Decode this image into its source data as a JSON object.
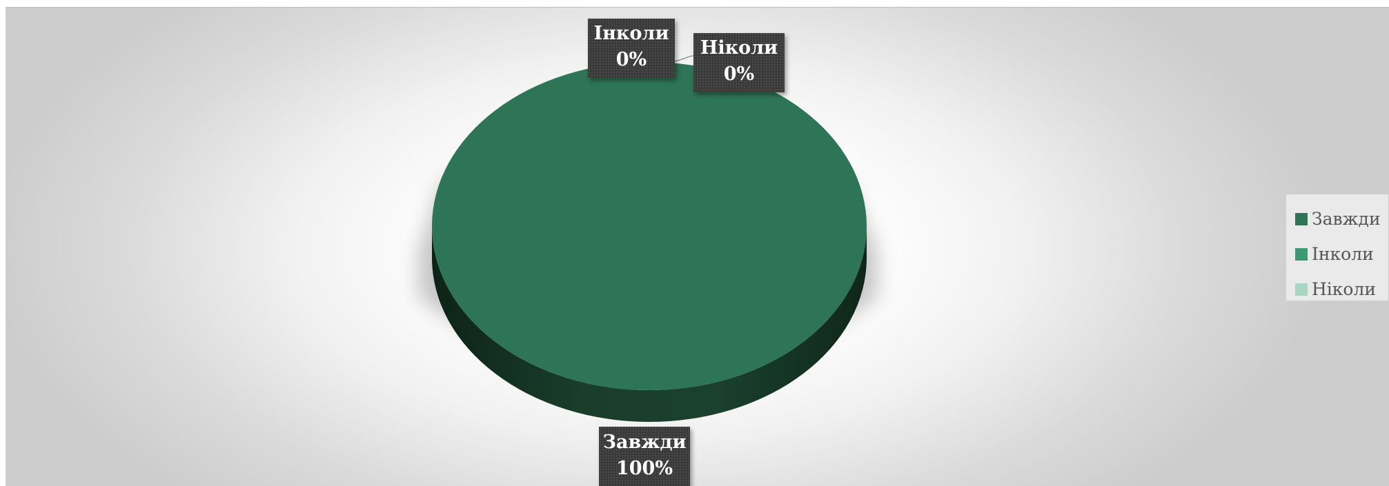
{
  "chart_data": {
    "type": "pie",
    "style": "3d",
    "categories": [
      "Завжди",
      "Інколи",
      "Ніколи"
    ],
    "values": [
      100,
      0,
      0
    ],
    "data_labels": [
      {
        "category": "Завжди",
        "percent": "100%"
      },
      {
        "category": "Інколи",
        "percent": "0%"
      },
      {
        "category": "Ніколи",
        "percent": "0%"
      }
    ],
    "legend_position": "right",
    "colors": {
      "Завжди": "#2e7457",
      "Інколи": "#3b9a74",
      "Ніколи": "#a9d6c2"
    }
  }
}
